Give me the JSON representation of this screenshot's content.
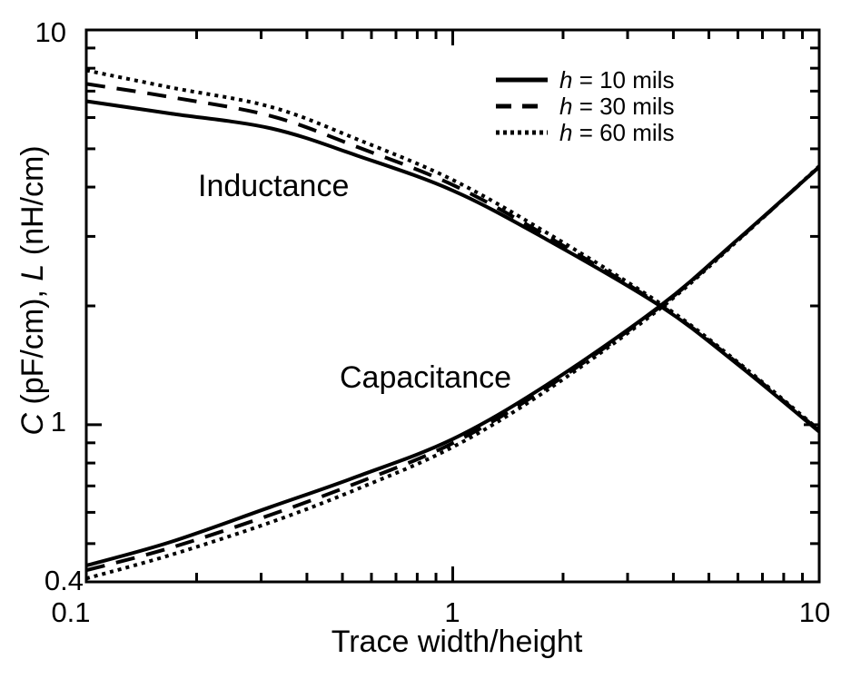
{
  "figure": {
    "background": "#ffffff",
    "line_color": "#000000"
  },
  "chart_data": {
    "type": "line",
    "x_scale": "log",
    "y_scale": "log",
    "xlim": [
      0.1,
      10
    ],
    "ylim": [
      0.4,
      10
    ],
    "grid": false,
    "xlabel": "Trace width/height",
    "ylabel": "C (pF/cm), L (nH/cm)",
    "ylabel_parts": {
      "var1": "C",
      "mid": " (pF/cm), ",
      "var2": "L",
      "rest": " (nH/cm)"
    },
    "x_tick_labels": {
      "left": "0.1",
      "center": "1",
      "right": "10"
    },
    "y_tick_labels": {
      "top": "10",
      "middle": "1",
      "bottom": "0.4"
    },
    "x_ticks_minor": [
      0.2,
      0.3,
      0.4,
      0.5,
      0.6,
      0.7,
      0.8,
      0.9,
      2,
      3,
      4,
      5,
      6,
      7,
      8,
      9
    ],
    "x_ticks_major": [
      0.1,
      1,
      10
    ],
    "y_ticks_minor": [
      0.5,
      0.6,
      0.7,
      0.8,
      0.9,
      2,
      3,
      4,
      5,
      6,
      7,
      8,
      9
    ],
    "y_ticks_major": [
      0.4,
      1,
      10
    ],
    "annotations": [
      {
        "id": "inductance",
        "text": "Inductance"
      },
      {
        "id": "capacitance",
        "text": "Capacitance"
      }
    ],
    "legend": {
      "position": "top-right",
      "items": [
        {
          "style": "solid",
          "var": "h",
          "rest": " = 10 mils"
        },
        {
          "style": "dashed",
          "var": "h",
          "rest": " = 30 mils"
        },
        {
          "style": "dotted",
          "var": "h",
          "rest": " = 60 mils"
        }
      ]
    },
    "x": [
      0.1,
      0.17,
      0.32,
      0.55,
      1.0,
      1.8,
      3.68,
      6.0,
      10.0
    ],
    "series": [
      {
        "id": "inductance-h10",
        "name": "Inductance, h = 10 mils",
        "dash": "solid",
        "values": [
          6.6,
          6.14,
          5.63,
          4.8,
          3.92,
          2.95,
          2.0,
          1.42,
          0.96
        ]
      },
      {
        "id": "inductance-h30",
        "name": "Inductance, h = 30 mils",
        "dash": "dashed",
        "values": [
          7.3,
          6.76,
          6.05,
          5.05,
          4.05,
          3.01,
          2.01,
          1.43,
          0.965
        ]
      },
      {
        "id": "inductance-h60",
        "name": "Inductance, h = 60 mils",
        "dash": "dotted",
        "values": [
          7.9,
          7.15,
          6.38,
          5.28,
          4.17,
          3.07,
          2.03,
          1.44,
          0.97
        ]
      },
      {
        "id": "capacitance-h10",
        "name": "Capacitance, h = 10 mils",
        "dash": "solid",
        "values": [
          0.44,
          0.505,
          0.62,
          0.74,
          0.92,
          1.26,
          2.0,
          2.95,
          4.5
        ]
      },
      {
        "id": "capacitance-h30",
        "name": "Capacitance, h = 30 mils",
        "dash": "dashed",
        "values": [
          0.428,
          0.488,
          0.592,
          0.713,
          0.898,
          1.24,
          1.99,
          2.94,
          4.5
        ]
      },
      {
        "id": "capacitance-h60",
        "name": "Capacitance, h = 60 mils",
        "dash": "dotted",
        "values": [
          0.408,
          0.468,
          0.567,
          0.688,
          0.878,
          1.22,
          1.97,
          2.93,
          4.52
        ]
      }
    ]
  }
}
